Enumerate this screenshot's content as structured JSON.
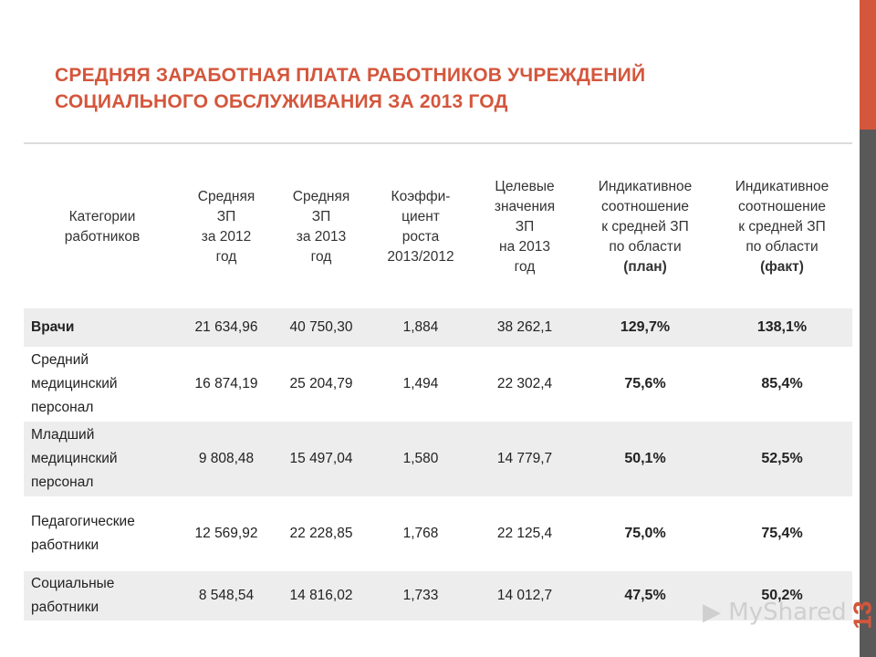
{
  "title": {
    "line1": "СРЕДНЯЯ ЗАРАБОТНАЯ ПЛАТА РАБОТНИКОВ УЧРЕЖДЕНИЙ",
    "line2": "СОЦИАЛЬНОГО ОБСЛУЖИВАНИЯ ЗА 2013 ГОД"
  },
  "page_number": "13",
  "watermark": "MyShared",
  "colors": {
    "accent": "#d4563c",
    "side_dark": "#595959",
    "row_shade": "#ededed"
  },
  "table": {
    "headers": [
      [
        "Категории",
        "работников"
      ],
      [
        "Средняя",
        "ЗП",
        "за 2012",
        "год"
      ],
      [
        "Средняя",
        "ЗП",
        "за 2013",
        "год"
      ],
      [
        "Коэффи-",
        "циент",
        "роста",
        "2013/2012"
      ],
      [
        "Целевые",
        "значения",
        "ЗП",
        "на 2013",
        "год"
      ],
      [
        "Индикативное",
        "соотношение",
        "к средней ЗП",
        "по области",
        "(план)"
      ],
      [
        "Индикативное",
        "соотношение",
        "к средней ЗП",
        "по области",
        "(факт)"
      ]
    ],
    "rows": [
      {
        "category": [
          "Врачи"
        ],
        "zp2012": "21 634,96",
        "zp2013": "40 750,30",
        "coef": "1,884",
        "target": "38 262,1",
        "plan": "129,7%",
        "fact": "138,1%"
      },
      {
        "category": [
          "Средний",
          "медицинский",
          "персонал"
        ],
        "zp2012": "16 874,19",
        "zp2013": "25 204,79",
        "coef": "1,494",
        "target": "22 302,4",
        "plan": "75,6%",
        "fact": "85,4%"
      },
      {
        "category": [
          "Младший",
          "медицинский",
          "персонал"
        ],
        "zp2012": "9 808,48",
        "zp2013": "15 497,04",
        "coef": "1,580",
        "target": "14 779,7",
        "plan": "50,1%",
        "fact": "52,5%"
      },
      {
        "category": [
          "Педагогические",
          "работники"
        ],
        "zp2012": "12 569,92",
        "zp2013": "22 228,85",
        "coef": "1,768",
        "target": "22 125,4",
        "plan": "75,0%",
        "fact": "75,4%"
      },
      {
        "category": [
          "Социальные",
          "работники"
        ],
        "zp2012": "8 548,54",
        "zp2013": "14 816,02",
        "coef": "1,733",
        "target": "14 012,7",
        "plan": "47,5%",
        "fact": "50,2%"
      }
    ]
  }
}
